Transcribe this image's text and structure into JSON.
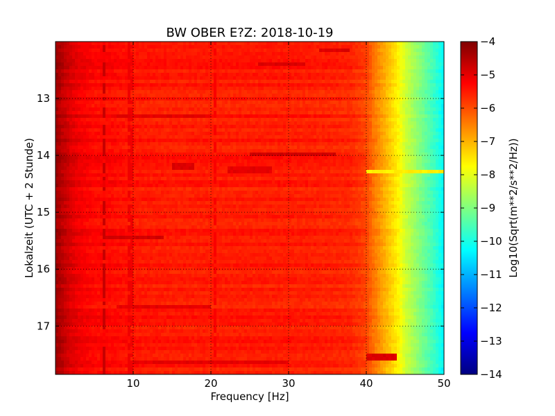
{
  "chart_data": {
    "type": "heatmap",
    "title": "BW OBER E?Z: 2018-10-19",
    "xlabel": "Frequency [Hz]",
    "ylabel": "Lokalzeit (UTC + 2 Stunde)",
    "colorbar_label": "Log10(Sqrt(m**2/s**2/Hz))",
    "xlim": [
      0,
      50
    ],
    "ylim": [
      12.0,
      17.85
    ],
    "y_inverted": true,
    "x_ticks": [
      10,
      20,
      30,
      40,
      50
    ],
    "x_tick_labels": [
      "10",
      "20",
      "30",
      "40",
      "50"
    ],
    "y_ticks": [
      13,
      14,
      15,
      16,
      17
    ],
    "y_tick_labels": [
      "13",
      "14",
      "15",
      "16",
      "17"
    ],
    "color_range": [
      -14,
      -4
    ],
    "colorbar_ticks": [
      -4,
      -5,
      -6,
      -7,
      -8,
      -9,
      -10,
      -11,
      -12,
      -13,
      -14
    ],
    "colorbar_tick_labels": [
      "−4",
      "−5",
      "−6",
      "−7",
      "−8",
      "−9",
      "−10",
      "−11",
      "−12",
      "−13",
      "−14"
    ],
    "colormap": "jet",
    "grid": true,
    "spectrum_profile": {
      "frequency_hz": [
        0,
        1,
        2,
        3,
        5,
        7,
        10,
        15,
        20,
        25,
        30,
        35,
        38,
        40,
        41,
        42,
        43,
        44,
        45,
        46,
        47,
        48,
        49,
        50
      ],
      "log10_amplitude": [
        -4.3,
        -4.6,
        -4.9,
        -5.1,
        -5.3,
        -5.3,
        -5.45,
        -5.5,
        -5.5,
        -5.5,
        -5.5,
        -5.55,
        -5.6,
        -5.9,
        -6.4,
        -6.8,
        -7.2,
        -7.6,
        -8.2,
        -8.6,
        -9.0,
        -9.4,
        -9.8,
        -10.3
      ]
    },
    "bands": [
      {
        "time": 12.15,
        "f_from": 34,
        "f_to": 38,
        "log10_amplitude": -4.9
      },
      {
        "time": 12.4,
        "f_from": 26,
        "f_to": 32,
        "log10_amplitude": -4.9
      },
      {
        "time": 13.3,
        "f_from": 8,
        "f_to": 20,
        "log10_amplitude": -5.0
      },
      {
        "time": 14.0,
        "f_from": 25,
        "f_to": 36,
        "log10_amplitude": -4.8
      },
      {
        "time": 14.2,
        "f_from": 15,
        "f_to": 18,
        "log10_amplitude": -4.9
      },
      {
        "time": 14.25,
        "f_from": 22,
        "f_to": 28,
        "log10_amplitude": -5.0
      },
      {
        "time": 14.27,
        "f_from": 40,
        "f_to": 50,
        "log10_amplitude": -7.6
      },
      {
        "time": 15.45,
        "f_from": 6,
        "f_to": 14,
        "log10_amplitude": -4.8
      },
      {
        "time": 16.65,
        "f_from": 8,
        "f_to": 20,
        "log10_amplitude": -5.0
      },
      {
        "time": 17.55,
        "f_from": 40,
        "f_to": 44,
        "log10_amplitude": -4.9
      },
      {
        "time": 17.65,
        "f_from": 10,
        "f_to": 30,
        "log10_amplitude": -5.0
      }
    ],
    "vertical_lines": [
      {
        "frequency_hz": 6.3,
        "log10_amplitude": -4.7
      },
      {
        "frequency_hz": 9.7,
        "log10_amplitude": -5.1
      },
      {
        "frequency_hz": 20.6,
        "log10_amplitude": -5.2
      }
    ]
  }
}
